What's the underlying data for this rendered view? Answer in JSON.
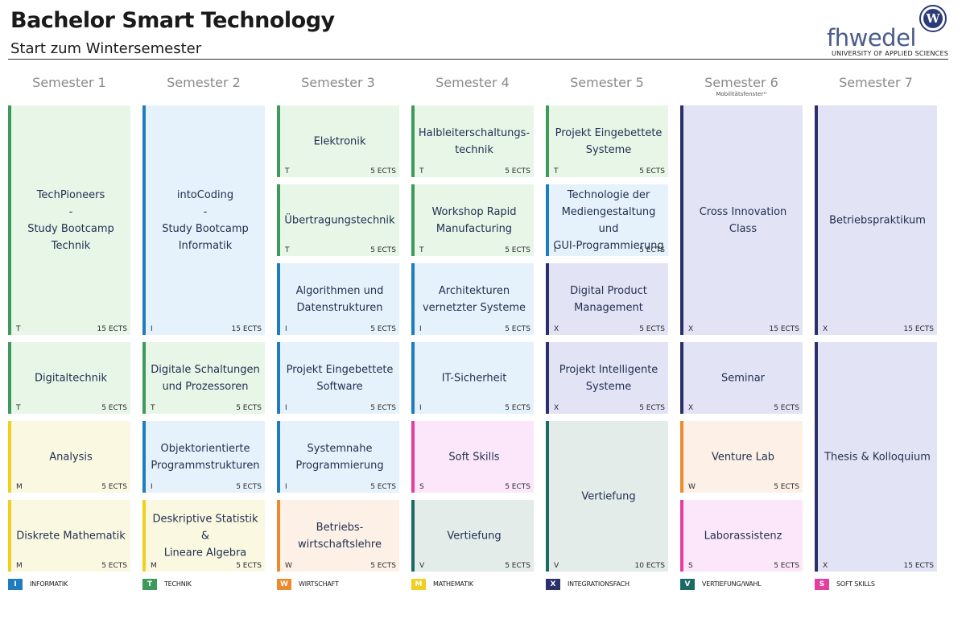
{
  "header": {
    "title": "Bachelor Smart Technology",
    "subtitle": "Start zum Wintersemester",
    "logo_text": "fhwedel",
    "logo_badge": "W",
    "logo_subline": "UNIVERSITY OF APPLIED SCIENCES"
  },
  "semesters": [
    {
      "label": "Semester 1",
      "note": ""
    },
    {
      "label": "Semester 2",
      "note": ""
    },
    {
      "label": "Semester 3",
      "note": ""
    },
    {
      "label": "Semester 4",
      "note": ""
    },
    {
      "label": "Semester 5",
      "note": ""
    },
    {
      "label": "Semester 6",
      "note": "Mobilitätsfenster¹⁾"
    },
    {
      "label": "Semester 7",
      "note": ""
    }
  ],
  "modules": [
    {
      "sem": 0,
      "row": 0,
      "span": 3,
      "title": [
        "TechPioneers",
        "-",
        "Study Bootcamp",
        "Technik"
      ],
      "code": "T",
      "ects": "15 ECTS"
    },
    {
      "sem": 0,
      "row": 3,
      "span": 1,
      "title": [
        "Digitaltechnik"
      ],
      "code": "T",
      "ects": "5 ECTS"
    },
    {
      "sem": 0,
      "row": 4,
      "span": 1,
      "title": [
        "Analysis"
      ],
      "code": "M",
      "ects": "5 ECTS"
    },
    {
      "sem": 0,
      "row": 5,
      "span": 1,
      "title": [
        "Diskrete Mathematik"
      ],
      "code": "M",
      "ects": "5 ECTS"
    },
    {
      "sem": 1,
      "row": 0,
      "span": 3,
      "title": [
        "intoCoding",
        "-",
        "Study Bootcamp",
        "Informatik"
      ],
      "code": "I",
      "ects": "15 ECTS"
    },
    {
      "sem": 1,
      "row": 3,
      "span": 1,
      "title": [
        "Digitale Schaltungen",
        "und Prozessoren"
      ],
      "code": "T",
      "ects": "5 ECTS"
    },
    {
      "sem": 1,
      "row": 4,
      "span": 1,
      "title": [
        "Objektorientierte",
        "Programmstrukturen"
      ],
      "code": "I",
      "ects": "5 ECTS"
    },
    {
      "sem": 1,
      "row": 5,
      "span": 1,
      "title": [
        "Deskriptive Statistik &",
        "Lineare Algebra"
      ],
      "code": "M",
      "ects": "5 ECTS"
    },
    {
      "sem": 2,
      "row": 0,
      "span": 1,
      "title": [
        "Elektronik"
      ],
      "code": "T",
      "ects": "5 ECTS"
    },
    {
      "sem": 2,
      "row": 1,
      "span": 1,
      "title": [
        "Übertragungstechnik"
      ],
      "code": "T",
      "ects": "5 ECTS"
    },
    {
      "sem": 2,
      "row": 2,
      "span": 1,
      "title": [
        "Algorithmen und",
        "Datenstrukturen"
      ],
      "code": "I",
      "ects": "5 ECTS"
    },
    {
      "sem": 2,
      "row": 3,
      "span": 1,
      "title": [
        "Projekt Eingebettete",
        "Software"
      ],
      "code": "I",
      "ects": "5 ECTS"
    },
    {
      "sem": 2,
      "row": 4,
      "span": 1,
      "title": [
        "Systemnahe",
        "Programmierung"
      ],
      "code": "I",
      "ects": "5 ECTS"
    },
    {
      "sem": 2,
      "row": 5,
      "span": 1,
      "title": [
        "Betriebs-",
        "wirtschaftslehre"
      ],
      "code": "W",
      "ects": "5 ECTS"
    },
    {
      "sem": 3,
      "row": 0,
      "span": 1,
      "title": [
        "Halbleiterschaltungs-",
        "technik"
      ],
      "code": "T",
      "ects": "5 ECTS"
    },
    {
      "sem": 3,
      "row": 1,
      "span": 1,
      "title": [
        "Workshop Rapid",
        "Manufacturing"
      ],
      "code": "T",
      "ects": "5 ECTS"
    },
    {
      "sem": 3,
      "row": 2,
      "span": 1,
      "title": [
        "Architekturen",
        "vernetzter Systeme"
      ],
      "code": "I",
      "ects": "5 ECTS"
    },
    {
      "sem": 3,
      "row": 3,
      "span": 1,
      "title": [
        "IT-Sicherheit"
      ],
      "code": "I",
      "ects": "5 ECTS"
    },
    {
      "sem": 3,
      "row": 4,
      "span": 1,
      "title": [
        "Soft Skills"
      ],
      "code": "S",
      "ects": "5 ECTS"
    },
    {
      "sem": 3,
      "row": 5,
      "span": 1,
      "title": [
        "Vertiefung"
      ],
      "code": "V",
      "ects": "5 ECTS"
    },
    {
      "sem": 4,
      "row": 0,
      "span": 1,
      "title": [
        "Projekt Eingebettete",
        "Systeme"
      ],
      "code": "T",
      "ects": "5 ECTS"
    },
    {
      "sem": 4,
      "row": 1,
      "span": 1,
      "title": [
        "Technologie der",
        "Mediengestaltung und",
        "GUI-Programmierung"
      ],
      "code": "I",
      "ects": "5 ECTS"
    },
    {
      "sem": 4,
      "row": 2,
      "span": 1,
      "title": [
        "Digital Product",
        "Management"
      ],
      "code": "X",
      "ects": "5 ECTS"
    },
    {
      "sem": 4,
      "row": 3,
      "span": 1,
      "title": [
        "Projekt Intelligente",
        "Systeme"
      ],
      "code": "X",
      "ects": "5 ECTS"
    },
    {
      "sem": 4,
      "row": 4,
      "span": 2,
      "title": [
        "Vertiefung"
      ],
      "code": "V",
      "ects": "10 ECTS"
    },
    {
      "sem": 5,
      "row": 0,
      "span": 3,
      "title": [
        "Cross Innovation Class"
      ],
      "code": "X",
      "ects": "15 ECTS"
    },
    {
      "sem": 5,
      "row": 3,
      "span": 1,
      "title": [
        "Seminar"
      ],
      "code": "X",
      "ects": "5 ECTS"
    },
    {
      "sem": 5,
      "row": 4,
      "span": 1,
      "title": [
        "Venture Lab"
      ],
      "code": "W",
      "ects": "5 ECTS"
    },
    {
      "sem": 5,
      "row": 5,
      "span": 1,
      "title": [
        "Laborassistenz"
      ],
      "code": "S",
      "ects": "5 ECTS"
    },
    {
      "sem": 6,
      "row": 0,
      "span": 3,
      "title": [
        "Betriebspraktikum"
      ],
      "code": "X",
      "ects": "15 ECTS"
    },
    {
      "sem": 6,
      "row": 3,
      "span": 3,
      "title": [
        "Thesis & Kolloquium"
      ],
      "code": "X",
      "ects": "15 ECTS"
    }
  ],
  "legend": [
    {
      "code": "I",
      "label": "INFORMATIK"
    },
    {
      "code": "T",
      "label": "TECHNIK"
    },
    {
      "code": "W",
      "label": "WIRTSCHAFT"
    },
    {
      "code": "M",
      "label": "MATHEMATIK"
    },
    {
      "code": "X",
      "label": "INTEGRATIONSFACH"
    },
    {
      "code": "V",
      "label": "VERTIEFUNG/WAHL"
    },
    {
      "code": "S",
      "label": "SOFT SKILLS"
    }
  ],
  "colors": {
    "I": "#1f7cbf",
    "T": "#3d9a5a",
    "W": "#ee8a2e",
    "M": "#f0cf1e",
    "X": "#2b2f6c",
    "V": "#1c6a66",
    "S": "#e23fa1"
  }
}
